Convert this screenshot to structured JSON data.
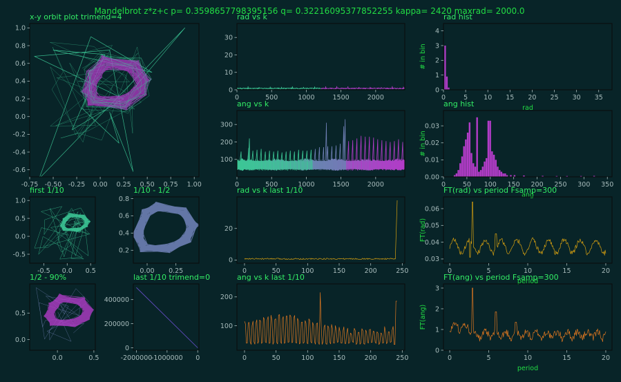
{
  "suptitle": "Mandelbrot z*z+c  p= 0.3598657798395156  q= 0.32216095377852255  kappa= 2420  maxrad= 2000.0",
  "colors": {
    "background": "#082428",
    "text_green": "#22dd44",
    "tick": "#a8bcbc",
    "purple": "#b23cc8",
    "teal": "#3cc896",
    "steelblue": "#6e7fb4",
    "orange": "#e07820",
    "gold": "#d6a010"
  },
  "chart_data": [
    {
      "id": "orbit",
      "type": "line",
      "title": "x-y orbit plot  trimend=4",
      "xlim": [
        -0.75,
        1.05
      ],
      "ylim": [
        -0.68,
        1.05
      ],
      "xticks": [
        -0.75,
        -0.5,
        -0.25,
        0.0,
        0.25,
        0.5,
        0.75,
        1.0
      ],
      "xtick_labels": [
        "-0.75",
        "-0.50",
        "-0.25",
        "0.00",
        "0.25",
        "0.50",
        "0.75",
        "1.00"
      ],
      "yticks": [
        -0.6,
        -0.4,
        -0.2,
        0.0,
        0.2,
        0.4,
        0.6,
        0.8,
        1.0
      ],
      "ytick_labels": [
        "-0.6",
        "-0.4",
        "-0.2",
        "0.0",
        "0.2",
        "0.4",
        "0.6",
        "0.8",
        "1.0"
      ],
      "hole_polygon": [
        [
          0.0,
          0.45
        ],
        [
          0.08,
          0.55
        ],
        [
          0.3,
          0.52
        ],
        [
          0.38,
          0.4
        ],
        [
          0.35,
          0.3
        ],
        [
          0.22,
          0.22
        ],
        [
          -0.02,
          0.22
        ],
        [
          -0.05,
          0.32
        ]
      ],
      "ring_width": 0.14,
      "transients": [
        [
          0.36,
          0.32
        ],
        [
          0.9,
          1.0
        ],
        [
          -0.65,
          -0.7
        ],
        [
          -0.1,
          0.9
        ],
        [
          0.55,
          0.5
        ],
        [
          -0.5,
          0.75
        ],
        [
          0.05,
          0.7
        ],
        [
          -0.3,
          -0.15
        ],
        [
          0.25,
          0.2
        ],
        [
          -0.7,
          0.68
        ],
        [
          0.1,
          0.75
        ],
        [
          0.35,
          -0.62
        ],
        [
          0.1,
          0.05
        ],
        [
          0.2,
          -0.3
        ],
        [
          -0.2,
          0.1
        ]
      ]
    },
    {
      "id": "rad_vs_k",
      "type": "line",
      "title": "rad vs k",
      "xlim": [
        0,
        2420
      ],
      "ylim": [
        0,
        38
      ],
      "xticks": [
        0,
        500,
        1000,
        1500,
        2000
      ],
      "xtick_labels": [
        "0",
        "500",
        "1000",
        "1500",
        "2000"
      ],
      "yticks": [
        0,
        10,
        20,
        30
      ],
      "ytick_labels": [
        "0",
        "10",
        "20",
        "30"
      ],
      "baseline": 0.5,
      "max": 37.8
    },
    {
      "id": "rad_hist",
      "type": "bar",
      "title": "rad hist",
      "ylabel": "# in bin",
      "xlabel": "rad",
      "xlim": [
        0,
        38
      ],
      "ylim": [
        0,
        4.5
      ],
      "xticks": [
        0,
        5,
        10,
        15,
        20,
        25,
        30,
        35
      ],
      "xtick_labels": [
        "0",
        "5",
        "10",
        "15",
        "20",
        "25",
        "30",
        "35"
      ],
      "yticks": [
        0,
        1,
        2,
        3,
        4
      ],
      "ytick_labels": [
        "0",
        "1",
        "2",
        "3",
        "4"
      ],
      "bins": [
        [
          0.2,
          3.0
        ],
        [
          0.6,
          0.9
        ],
        [
          1.0,
          0.15
        ]
      ]
    },
    {
      "id": "ang_vs_k",
      "type": "line",
      "title": "ang vs k",
      "xlim": [
        0,
        2420
      ],
      "ylim": [
        0,
        380
      ],
      "xticks": [
        0,
        500,
        1000,
        1500,
        2000
      ],
      "xtick_labels": [
        "0",
        "500",
        "1000",
        "1500",
        "2000"
      ],
      "yticks": [
        100,
        200,
        300
      ],
      "ytick_labels": [
        "100",
        "200",
        "300"
      ],
      "band": [
        40,
        95
      ],
      "spikes": [
        [
          60,
          145
        ],
        [
          170,
          165
        ],
        [
          180,
          220
        ],
        [
          230,
          150
        ],
        [
          290,
          155
        ],
        [
          350,
          160
        ],
        [
          410,
          145
        ],
        [
          470,
          150
        ],
        [
          530,
          145
        ],
        [
          590,
          150
        ],
        [
          650,
          140
        ],
        [
          710,
          145
        ],
        [
          770,
          150
        ],
        [
          830,
          145
        ],
        [
          890,
          155
        ],
        [
          950,
          150
        ],
        [
          1010,
          150
        ],
        [
          1070,
          155
        ],
        [
          1130,
          160
        ],
        [
          1190,
          170
        ],
        [
          1250,
          170
        ],
        [
          1290,
          310
        ],
        [
          1310,
          175
        ],
        [
          1370,
          175
        ],
        [
          1430,
          180
        ],
        [
          1490,
          190
        ],
        [
          1540,
          290
        ],
        [
          1560,
          330
        ],
        [
          1610,
          205
        ],
        [
          1670,
          210
        ],
        [
          1730,
          220
        ],
        [
          1790,
          235
        ],
        [
          1850,
          230
        ],
        [
          1910,
          230
        ],
        [
          1970,
          225
        ],
        [
          2030,
          215
        ],
        [
          2090,
          210
        ],
        [
          2150,
          205
        ],
        [
          2210,
          200
        ],
        [
          2270,
          205
        ],
        [
          2330,
          215
        ],
        [
          2390,
          200
        ]
      ]
    },
    {
      "id": "ang_hist",
      "type": "bar",
      "title": "ang hist",
      "ylabel": "# in bin",
      "xlabel": "ang",
      "xlim": [
        0,
        360
      ],
      "ylim": [
        0,
        0.039
      ],
      "xticks": [
        0,
        50,
        100,
        150,
        200,
        250,
        300,
        350
      ],
      "xtick_labels": [
        "0",
        "50",
        "100",
        "150",
        "200",
        "250",
        "300",
        "350"
      ],
      "yticks": [
        0,
        0.01,
        0.02,
        0.03
      ],
      "ytick_labels": [
        "0.00",
        "0.01",
        "0.02",
        "0.03"
      ],
      "bins": [
        [
          22,
          0.001
        ],
        [
          26,
          0.002
        ],
        [
          30,
          0.004
        ],
        [
          34,
          0.008
        ],
        [
          38,
          0.012
        ],
        [
          42,
          0.018
        ],
        [
          46,
          0.022
        ],
        [
          50,
          0.026
        ],
        [
          54,
          0.032
        ],
        [
          58,
          0.014
        ],
        [
          62,
          0.008
        ],
        [
          66,
          0.006
        ],
        [
          70,
          0.035
        ],
        [
          74,
          0.003
        ],
        [
          78,
          0.004
        ],
        [
          82,
          0.006
        ],
        [
          86,
          0.009
        ],
        [
          90,
          0.011
        ],
        [
          94,
          0.033
        ],
        [
          98,
          0.033
        ],
        [
          102,
          0.015
        ],
        [
          106,
          0.013
        ],
        [
          110,
          0.01
        ],
        [
          114,
          0.006
        ],
        [
          118,
          0.004
        ],
        [
          122,
          0.003
        ],
        [
          126,
          0.002
        ],
        [
          130,
          0.002
        ],
        [
          134,
          0.001
        ],
        [
          142,
          0.001
        ],
        [
          150,
          0.001
        ],
        [
          170,
          0.0008
        ],
        [
          210,
          0.0006
        ],
        [
          240,
          0.0005
        ],
        [
          262,
          0.0005
        ],
        [
          292,
          0.0005
        ],
        [
          320,
          0.0006
        ]
      ]
    },
    {
      "id": "first_tenth",
      "type": "line",
      "title": "first 1/10",
      "xlim": [
        -0.8,
        0.6
      ],
      "ylim": [
        -0.75,
        1.1
      ],
      "xticks": [
        -0.5,
        0.0,
        0.5
      ],
      "xtick_labels": [
        "-0.5",
        "0.0",
        "0.5"
      ],
      "yticks": [
        -0.5,
        0.0,
        0.5,
        1.0
      ],
      "ytick_labels": [
        "-0.5",
        "0.0",
        "0.5",
        "1.0"
      ]
    },
    {
      "id": "tenth_to_half",
      "type": "line",
      "title": "1/10 - 1/2",
      "xlim": [
        -0.12,
        0.45
      ],
      "ylim": [
        0.05,
        0.82
      ],
      "xticks": [
        0.0,
        0.25
      ],
      "xtick_labels": [
        "0.00",
        "0.25"
      ],
      "yticks": [
        0.2,
        0.4,
        0.6,
        0.8
      ],
      "ytick_labels": [
        "0.2",
        "0.4",
        "0.6",
        "0.8"
      ]
    },
    {
      "id": "rad_last",
      "type": "line",
      "title": "rad vs k last 1/10",
      "xlim": [
        -12,
        254
      ],
      "ylim": [
        -2,
        40
      ],
      "xticks": [
        0,
        50,
        100,
        150,
        200,
        250
      ],
      "xtick_labels": [
        "0",
        "50",
        "100",
        "150",
        "200",
        "250"
      ],
      "yticks": [
        0,
        20
      ],
      "ytick_labels": [
        "0",
        "20"
      ],
      "final_value": 37.8
    },
    {
      "id": "ft_rad",
      "type": "line",
      "title": "FT(rad) vs period   Fsamp=300",
      "ylabel": "FT(rad)",
      "xlabel": "period",
      "xlim": [
        -0.8,
        20.8
      ],
      "ylim": [
        0.0275,
        0.067
      ],
      "xticks": [
        0,
        5,
        10,
        15,
        20
      ],
      "xtick_labels": [
        "0",
        "5",
        "10",
        "15",
        "20"
      ],
      "yticks": [
        0.03,
        0.04,
        0.05,
        0.06
      ],
      "ytick_labels": [
        "0.03",
        "0.04",
        "0.05",
        "0.06"
      ],
      "peak": [
        2.9,
        0.064
      ]
    },
    {
      "id": "half_to_ninety",
      "type": "line",
      "title": "1/2 - 90%",
      "xlim": [
        -0.38,
        0.52
      ],
      "ylim": [
        -0.2,
        1.05
      ],
      "xticks": [
        0.0,
        0.5
      ],
      "xtick_labels": [
        "0.0",
        "0.5"
      ],
      "yticks": [
        0.0,
        0.5
      ],
      "ytick_labels": [
        "0.0",
        "0.5"
      ]
    },
    {
      "id": "last_tenth_trim",
      "type": "line",
      "title": "last 1/10  trimend=0",
      "xlim": [
        -2100000,
        40000
      ],
      "ylim": [
        -20000,
        530000
      ],
      "xticks": [
        -2000000,
        -1000000,
        0
      ],
      "xtick_labels": [
        "-2000000",
        "-1000000",
        "0"
      ],
      "yticks": [
        0,
        200000,
        400000
      ],
      "ytick_labels": [
        "0",
        "200000",
        "400000"
      ],
      "line": [
        [
          -2000000,
          500000
        ],
        [
          0,
          0
        ]
      ]
    },
    {
      "id": "ang_last",
      "type": "line",
      "title": "ang vs k last 1/10",
      "xlim": [
        -12,
        254
      ],
      "ylim": [
        15,
        245
      ],
      "xticks": [
        0,
        50,
        100,
        150,
        200,
        250
      ],
      "xtick_labels": [
        "0",
        "50",
        "100",
        "150",
        "200",
        "250"
      ],
      "yticks": [
        100,
        200
      ],
      "ytick_labels": [
        "100",
        "200"
      ],
      "spike": [
        120,
        215
      ]
    },
    {
      "id": "ft_ang",
      "type": "line",
      "title": "FT(ang) vs period   Fsamp=300",
      "ylabel": "FT(ang)",
      "xlabel": "period",
      "xlim": [
        -0.8,
        20.8
      ],
      "ylim": [
        0,
        3.2
      ],
      "xticks": [
        0,
        5,
        10,
        15,
        20
      ],
      "xtick_labels": [
        "0",
        "5",
        "10",
        "15",
        "20"
      ],
      "yticks": [
        0,
        1,
        2,
        3
      ],
      "ytick_labels": [
        "0",
        "1",
        "2",
        "3"
      ],
      "peak": [
        2.9,
        3.0
      ]
    }
  ]
}
